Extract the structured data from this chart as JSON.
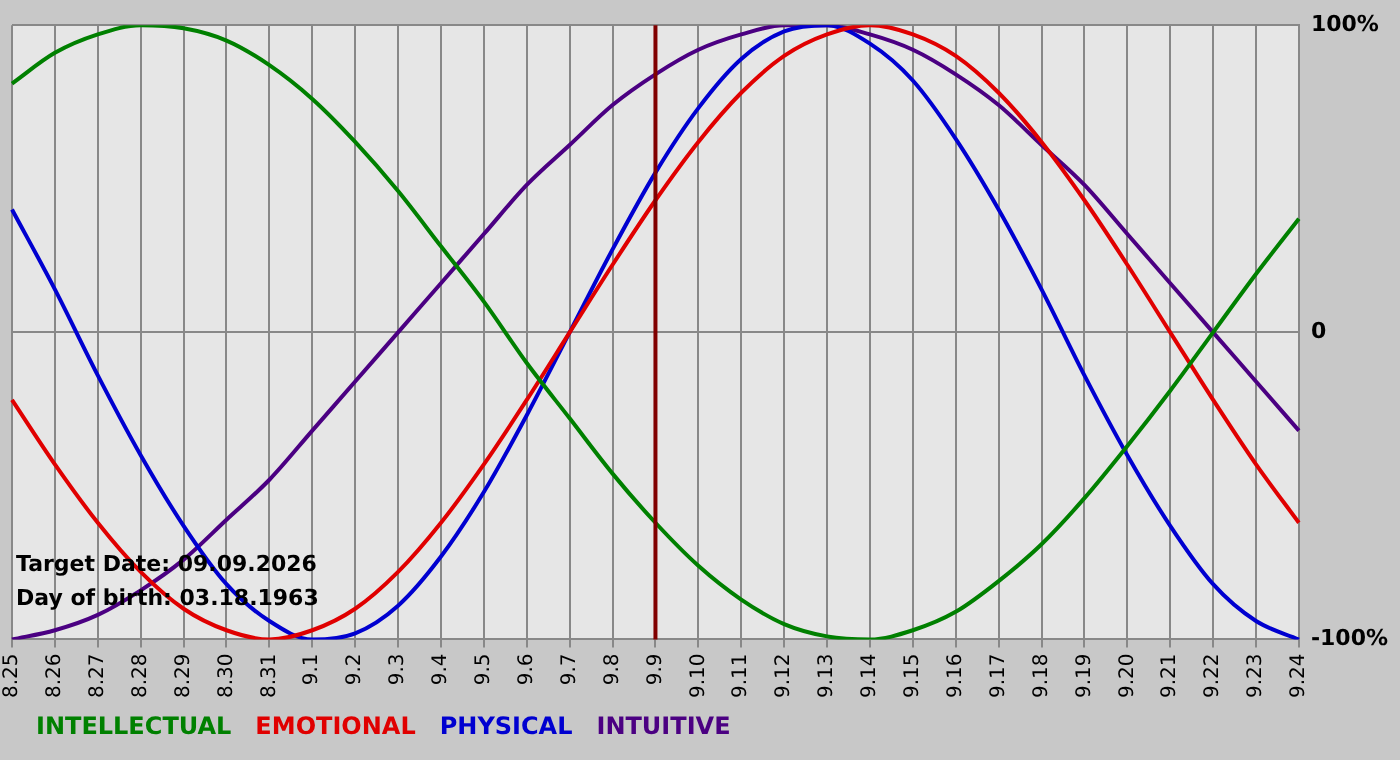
{
  "chart_data": {
    "type": "line",
    "categories": [
      "8.25",
      "8.26",
      "8.27",
      "8.28",
      "8.29",
      "8.30",
      "8.31",
      "9.1",
      "9.2",
      "9.3",
      "9.4",
      "9.5",
      "9.6",
      "9.7",
      "9.8",
      "9.9",
      "9.10",
      "9.11",
      "9.12",
      "9.13",
      "9.14",
      "9.15",
      "9.16",
      "9.17",
      "9.18",
      "9.19",
      "9.20",
      "9.21",
      "9.22",
      "9.23",
      "9.24"
    ],
    "series": [
      {
        "name": "INTELLECTUAL",
        "color": "#008000",
        "values": [
          81,
          91,
          97,
          100,
          99,
          95,
          87,
          76,
          62,
          46,
          28,
          10,
          -10,
          -28,
          -46,
          -62,
          -76,
          -87,
          -95,
          -99,
          -100,
          -97,
          -91,
          -81,
          -69,
          -54,
          -37,
          -19,
          0,
          19,
          37
        ]
      },
      {
        "name": "EMOTIONAL",
        "color": "#e00000",
        "values": [
          -22,
          -43,
          -62,
          -78,
          -90,
          -97,
          -100,
          -97,
          -90,
          -78,
          -62,
          -43,
          -22,
          0,
          22,
          43,
          62,
          78,
          90,
          97,
          100,
          97,
          90,
          78,
          62,
          43,
          22,
          0,
          -22,
          -43,
          -62
        ]
      },
      {
        "name": "PHYSICAL",
        "color": "#0000d0",
        "values": [
          40,
          14,
          -14,
          -40,
          -63,
          -82,
          -94,
          -100,
          -98,
          -89,
          -73,
          -52,
          -27,
          0,
          27,
          52,
          73,
          89,
          98,
          100,
          94,
          82,
          63,
          40,
          14,
          -14,
          -40,
          -63,
          -82,
          -94,
          -100
        ]
      },
      {
        "name": "INTUITIVE",
        "color": "#4b0082",
        "values": [
          -100,
          -97,
          -92,
          -84,
          -74,
          -61,
          -48,
          -32,
          -16,
          0,
          16,
          32,
          48,
          61,
          74,
          84,
          92,
          97,
          100,
          100,
          97,
          92,
          84,
          74,
          61,
          48,
          32,
          16,
          0,
          -16,
          -32
        ]
      }
    ],
    "ylim": [
      -100,
      100
    ],
    "yticks": [
      {
        "value": -100,
        "label": "-100%"
      },
      0,
      {
        "value": 100,
        "label": "100%"
      }
    ],
    "ref_lines": [
      {
        "axis": "x",
        "value": "9.9",
        "color": "#800000"
      }
    ],
    "annotations": [
      "Target Date: 09.09.2026",
      "Day of birth: 03.18.1963"
    ],
    "grid": true,
    "legend": "bottom left",
    "marker": "none",
    "line_style": "solid"
  }
}
